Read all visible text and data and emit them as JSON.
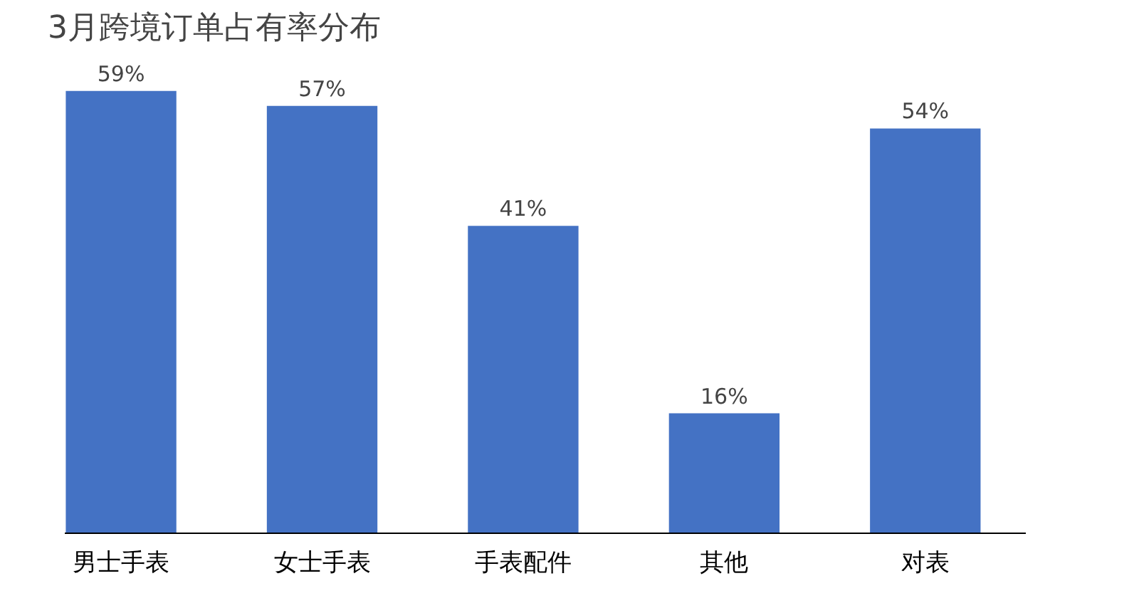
{
  "chart_data": {
    "type": "bar",
    "title": "3月跨境订单占有率分布",
    "categories": [
      "男士手表",
      "女士手表",
      "手表配件",
      "其他",
      "对表"
    ],
    "values": [
      59,
      57,
      41,
      16,
      54
    ],
    "value_labels": [
      "59%",
      "57%",
      "41%",
      "16%",
      "54%"
    ],
    "color": "#4472c4",
    "grid": false
  }
}
